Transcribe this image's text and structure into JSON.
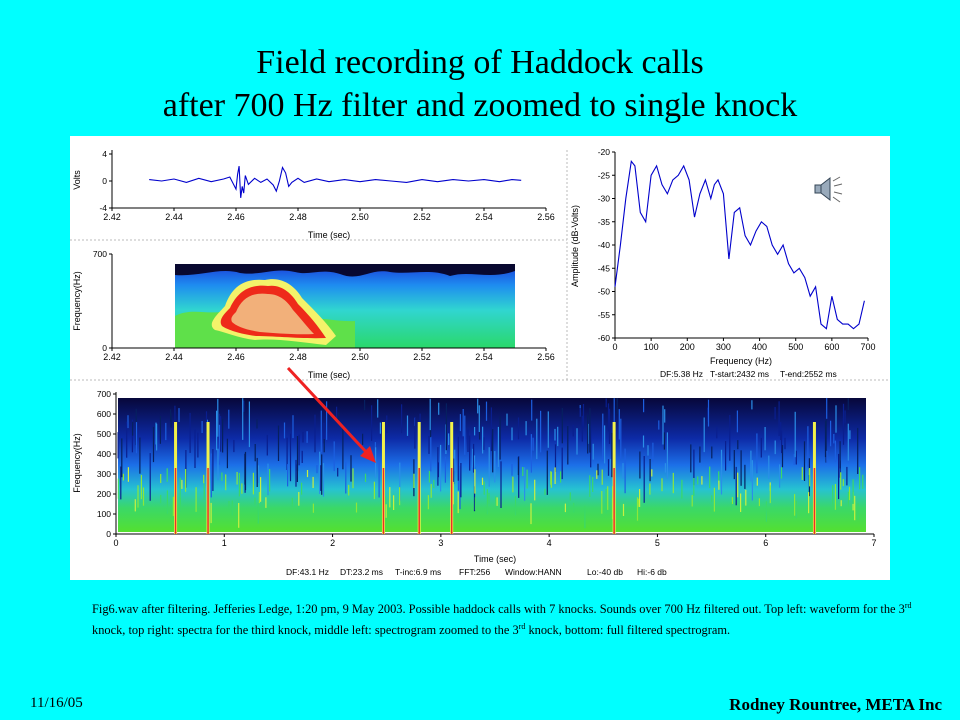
{
  "slide": {
    "title_line1": "Field recording of Haddock calls",
    "title_line2": "after 700 Hz filter and zoomed to single knock",
    "caption_p1": "Fig6.wav after filtering. Jefferies Ledge, 1:20 pm, 9 May 2003.  Possible haddock calls with 7 knocks.  Sounds over 700 Hz filtered out. Top left: waveform for the 3",
    "caption_sup1": "rd",
    "caption_p2": " knock, top right: spectra for the third knock, middle left: spectrogram zoomed to the 3",
    "caption_sup2": "rd",
    "caption_p3": " knock, bottom: full filtered spectrogram.",
    "date": "11/16/05",
    "author": "Rodney Rountree, META Inc",
    "speaker_icon": "speaker-icon"
  },
  "colors": {
    "background": "#00ffff",
    "line": "#0000cc",
    "arrow": "#ee2222"
  },
  "chart_data": [
    {
      "type": "line",
      "id": "waveform",
      "xlabel": "Time (sec)",
      "ylabel": "Volts",
      "xlim": [
        2.42,
        2.56
      ],
      "ylim": [
        -4,
        4
      ],
      "xticks": [
        "2.42",
        "2.44",
        "2.46",
        "2.48",
        "2.50",
        "2.52",
        "2.54",
        "2.56"
      ],
      "yticks": [
        "4",
        "0",
        "-4"
      ],
      "x": [
        2.432,
        2.436,
        2.44,
        2.444,
        2.448,
        2.452,
        2.456,
        2.458,
        2.46,
        2.4605,
        2.461,
        2.4615,
        2.462,
        2.4625,
        2.463,
        2.464,
        2.466,
        2.468,
        2.47,
        2.472,
        2.473,
        2.474,
        2.475,
        2.476,
        2.477,
        2.478,
        2.48,
        2.482,
        2.486,
        2.49,
        2.495,
        2.5,
        2.505,
        2.51,
        2.515,
        2.52,
        2.525,
        2.53,
        2.535,
        2.54,
        2.545,
        2.549,
        2.552
      ],
      "y": [
        0.2,
        0.0,
        0.3,
        -0.2,
        0.4,
        -0.1,
        0.3,
        0.6,
        -1.2,
        1.0,
        2.2,
        -2.5,
        -0.8,
        -1.8,
        0.8,
        -0.5,
        0.4,
        -0.2,
        0.3,
        -0.6,
        -1.5,
        0.0,
        2.0,
        1.2,
        -0.8,
        -0.2,
        0.4,
        -0.2,
        0.3,
        -0.1,
        0.2,
        -0.1,
        0.2,
        0.0,
        -0.2,
        0.2,
        -0.1,
        0.2,
        0.0,
        0.2,
        -0.1,
        0.2,
        0.1
      ]
    },
    {
      "type": "heatmap",
      "id": "zoomed-spectrogram",
      "xlabel": "Time (sec)",
      "ylabel": "Frequency(Hz)",
      "xlim": [
        2.42,
        2.56
      ],
      "ylim": [
        0,
        700
      ],
      "xticks": [
        "2.42",
        "2.44",
        "2.46",
        "2.48",
        "2.50",
        "2.52",
        "2.54",
        "2.56"
      ],
      "yticks": [
        "700",
        "0"
      ],
      "data_x_range": [
        2.432,
        2.552
      ],
      "peak_time": 2.47,
      "peak_band_hz": [
        50,
        500
      ]
    },
    {
      "type": "line",
      "id": "spectrum",
      "xlabel": "Frequency (Hz)",
      "ylabel": "Amplitude (dB-Volts)",
      "xlim": [
        0,
        700
      ],
      "ylim": [
        -60,
        -20
      ],
      "xticks": [
        "0",
        "100",
        "200",
        "300",
        "400",
        "500",
        "600",
        "700"
      ],
      "yticks": [
        "-20",
        "-25",
        "-30",
        "-35",
        "-40",
        "-45",
        "-50",
        "-55",
        "-60"
      ],
      "x": [
        0,
        15,
        30,
        45,
        55,
        70,
        85,
        100,
        115,
        130,
        145,
        160,
        175,
        190,
        205,
        220,
        235,
        250,
        265,
        275,
        285,
        300,
        315,
        330,
        345,
        360,
        375,
        390,
        405,
        420,
        435,
        450,
        465,
        480,
        495,
        510,
        525,
        540,
        555,
        570,
        585,
        600,
        615,
        630,
        645,
        660,
        675,
        690
      ],
      "y": [
        -49,
        -40,
        -30,
        -22,
        -23,
        -33,
        -35,
        -25,
        -23,
        -27,
        -29,
        -26,
        -25,
        -23,
        -26,
        -34,
        -29,
        -26,
        -30,
        -27,
        -26,
        -29,
        -43,
        -33,
        -32,
        -38,
        -40,
        -37,
        -35,
        -36,
        -40,
        -42,
        -40,
        -44,
        -46,
        -45,
        -47,
        -51,
        -49,
        -57,
        -58,
        -51,
        -56,
        -57,
        -57,
        -58,
        -57,
        -52
      ],
      "footer": {
        "df": "DF:5.38 Hz",
        "tstart": "T-start:2432 ms",
        "tend": "T-end:2552 ms"
      }
    },
    {
      "type": "heatmap",
      "id": "full-spectrogram",
      "xlabel": "Time (sec)",
      "ylabel": "Frequency(Hz)",
      "xlim": [
        0,
        7
      ],
      "ylim": [
        0,
        700
      ],
      "xticks": [
        "0",
        "1",
        "2",
        "3",
        "4",
        "5",
        "6",
        "7"
      ],
      "yticks": [
        "0",
        "100",
        "200",
        "300",
        "400",
        "500",
        "600",
        "700"
      ],
      "knock_times": [
        0.55,
        0.85,
        2.47,
        2.8,
        3.1,
        4.6,
        6.45
      ],
      "footer": {
        "df": "DF:43.1 Hz",
        "dt": "DT:23.2 ms",
        "tinc": "T-inc:6.9 ms",
        "fft": "FFT:256",
        "window": "Window:HANN",
        "lo": "Lo:-40 db",
        "hi": "Hi:-6 db"
      }
    }
  ]
}
